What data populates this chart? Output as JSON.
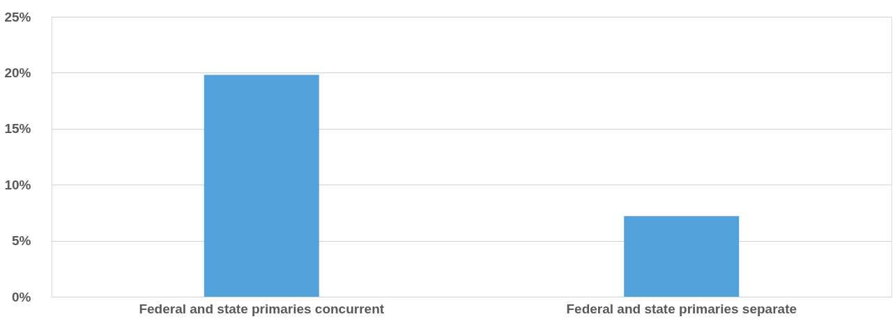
{
  "chart_data": {
    "type": "bar",
    "categories": [
      "Federal and state primaries concurrent",
      "Federal and state primaries separate"
    ],
    "values": [
      19.8,
      7.2
    ],
    "color": "#52a1da",
    "ylim": [
      0,
      25
    ],
    "yticks": [
      {
        "value": 0,
        "label": "0%"
      },
      {
        "value": 5,
        "label": "5%"
      },
      {
        "value": 10,
        "label": "10%"
      },
      {
        "value": 15,
        "label": "15%"
      },
      {
        "value": 20,
        "label": "20%"
      },
      {
        "value": 25,
        "label": "25%"
      }
    ],
    "grid": "y"
  }
}
